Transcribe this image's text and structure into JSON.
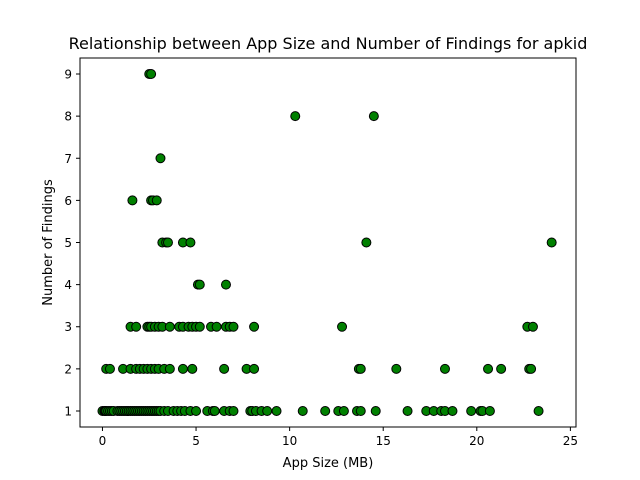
{
  "chart_data": {
    "type": "scatter",
    "title": "Relationship between App Size and Number of Findings for apkid",
    "xlabel": "App Size (MB)",
    "ylabel": "Number of Findings",
    "xlim": [
      -1.2,
      25.3
    ],
    "ylim": [
      0.62,
      9.38
    ],
    "xticks": [
      0,
      5,
      10,
      15,
      20,
      25
    ],
    "yticks": [
      1,
      2,
      3,
      4,
      5,
      6,
      7,
      8,
      9
    ],
    "grid": false,
    "marker_color": "#008000",
    "marker_edge_color": "#000000",
    "points": [
      {
        "x": 0.0,
        "y": 1
      },
      {
        "x": 0.1,
        "y": 1
      },
      {
        "x": 0.15,
        "y": 1
      },
      {
        "x": 0.2,
        "y": 1
      },
      {
        "x": 0.3,
        "y": 1
      },
      {
        "x": 0.4,
        "y": 1
      },
      {
        "x": 0.5,
        "y": 1
      },
      {
        "x": 0.6,
        "y": 1
      },
      {
        "x": 0.8,
        "y": 1
      },
      {
        "x": 0.9,
        "y": 1
      },
      {
        "x": 1.0,
        "y": 1
      },
      {
        "x": 1.1,
        "y": 1
      },
      {
        "x": 1.2,
        "y": 1
      },
      {
        "x": 1.3,
        "y": 1
      },
      {
        "x": 1.4,
        "y": 1
      },
      {
        "x": 1.5,
        "y": 1
      },
      {
        "x": 1.6,
        "y": 1
      },
      {
        "x": 1.7,
        "y": 1
      },
      {
        "x": 1.8,
        "y": 1
      },
      {
        "x": 1.9,
        "y": 1
      },
      {
        "x": 2.0,
        "y": 1
      },
      {
        "x": 2.1,
        "y": 1
      },
      {
        "x": 2.2,
        "y": 1
      },
      {
        "x": 2.3,
        "y": 1
      },
      {
        "x": 2.4,
        "y": 1
      },
      {
        "x": 2.5,
        "y": 1
      },
      {
        "x": 2.6,
        "y": 1
      },
      {
        "x": 2.7,
        "y": 1
      },
      {
        "x": 2.8,
        "y": 1
      },
      {
        "x": 2.9,
        "y": 1
      },
      {
        "x": 3.0,
        "y": 1
      },
      {
        "x": 3.1,
        "y": 1
      },
      {
        "x": 3.3,
        "y": 1
      },
      {
        "x": 3.5,
        "y": 1
      },
      {
        "x": 3.8,
        "y": 1
      },
      {
        "x": 4.0,
        "y": 1
      },
      {
        "x": 4.2,
        "y": 1
      },
      {
        "x": 4.4,
        "y": 1
      },
      {
        "x": 4.7,
        "y": 1
      },
      {
        "x": 5.0,
        "y": 1
      },
      {
        "x": 5.6,
        "y": 1
      },
      {
        "x": 5.9,
        "y": 1
      },
      {
        "x": 6.0,
        "y": 1
      },
      {
        "x": 6.5,
        "y": 1
      },
      {
        "x": 6.8,
        "y": 1
      },
      {
        "x": 7.0,
        "y": 1
      },
      {
        "x": 7.9,
        "y": 1
      },
      {
        "x": 8.0,
        "y": 1
      },
      {
        "x": 8.2,
        "y": 1
      },
      {
        "x": 8.5,
        "y": 1
      },
      {
        "x": 8.8,
        "y": 1
      },
      {
        "x": 9.3,
        "y": 1
      },
      {
        "x": 10.7,
        "y": 1
      },
      {
        "x": 11.9,
        "y": 1
      },
      {
        "x": 12.6,
        "y": 1
      },
      {
        "x": 12.9,
        "y": 1
      },
      {
        "x": 13.6,
        "y": 1
      },
      {
        "x": 13.8,
        "y": 1
      },
      {
        "x": 14.6,
        "y": 1
      },
      {
        "x": 16.3,
        "y": 1
      },
      {
        "x": 17.3,
        "y": 1
      },
      {
        "x": 17.7,
        "y": 1
      },
      {
        "x": 18.1,
        "y": 1
      },
      {
        "x": 18.3,
        "y": 1
      },
      {
        "x": 18.7,
        "y": 1
      },
      {
        "x": 19.7,
        "y": 1
      },
      {
        "x": 20.2,
        "y": 1
      },
      {
        "x": 20.3,
        "y": 1
      },
      {
        "x": 20.7,
        "y": 1
      },
      {
        "x": 23.3,
        "y": 1
      },
      {
        "x": 0.2,
        "y": 2
      },
      {
        "x": 0.4,
        "y": 2
      },
      {
        "x": 1.1,
        "y": 2
      },
      {
        "x": 1.5,
        "y": 2
      },
      {
        "x": 1.8,
        "y": 2
      },
      {
        "x": 2.0,
        "y": 2
      },
      {
        "x": 2.2,
        "y": 2
      },
      {
        "x": 2.4,
        "y": 2
      },
      {
        "x": 2.6,
        "y": 2
      },
      {
        "x": 2.8,
        "y": 2
      },
      {
        "x": 3.0,
        "y": 2
      },
      {
        "x": 3.3,
        "y": 2
      },
      {
        "x": 3.6,
        "y": 2
      },
      {
        "x": 4.3,
        "y": 2
      },
      {
        "x": 4.8,
        "y": 2
      },
      {
        "x": 6.5,
        "y": 2
      },
      {
        "x": 7.7,
        "y": 2
      },
      {
        "x": 8.1,
        "y": 2
      },
      {
        "x": 13.7,
        "y": 2
      },
      {
        "x": 13.8,
        "y": 2
      },
      {
        "x": 15.7,
        "y": 2
      },
      {
        "x": 18.3,
        "y": 2
      },
      {
        "x": 20.6,
        "y": 2
      },
      {
        "x": 21.3,
        "y": 2
      },
      {
        "x": 22.8,
        "y": 2
      },
      {
        "x": 22.9,
        "y": 2
      },
      {
        "x": 1.5,
        "y": 3
      },
      {
        "x": 1.8,
        "y": 3
      },
      {
        "x": 2.4,
        "y": 3
      },
      {
        "x": 2.5,
        "y": 3
      },
      {
        "x": 2.6,
        "y": 3
      },
      {
        "x": 2.8,
        "y": 3
      },
      {
        "x": 3.0,
        "y": 3
      },
      {
        "x": 3.2,
        "y": 3
      },
      {
        "x": 3.6,
        "y": 3
      },
      {
        "x": 4.1,
        "y": 3
      },
      {
        "x": 4.3,
        "y": 3
      },
      {
        "x": 4.6,
        "y": 3
      },
      {
        "x": 4.8,
        "y": 3
      },
      {
        "x": 5.0,
        "y": 3
      },
      {
        "x": 5.2,
        "y": 3
      },
      {
        "x": 5.8,
        "y": 3
      },
      {
        "x": 6.1,
        "y": 3
      },
      {
        "x": 6.6,
        "y": 3
      },
      {
        "x": 6.8,
        "y": 3
      },
      {
        "x": 7.0,
        "y": 3
      },
      {
        "x": 8.1,
        "y": 3
      },
      {
        "x": 12.8,
        "y": 3
      },
      {
        "x": 22.7,
        "y": 3
      },
      {
        "x": 23.0,
        "y": 3
      },
      {
        "x": 5.1,
        "y": 4
      },
      {
        "x": 5.2,
        "y": 4
      },
      {
        "x": 6.6,
        "y": 4
      },
      {
        "x": 3.2,
        "y": 5
      },
      {
        "x": 3.4,
        "y": 5
      },
      {
        "x": 3.5,
        "y": 5
      },
      {
        "x": 4.3,
        "y": 5
      },
      {
        "x": 4.7,
        "y": 5
      },
      {
        "x": 14.1,
        "y": 5
      },
      {
        "x": 24.0,
        "y": 5
      },
      {
        "x": 1.6,
        "y": 6
      },
      {
        "x": 2.6,
        "y": 6
      },
      {
        "x": 2.7,
        "y": 6
      },
      {
        "x": 2.9,
        "y": 6
      },
      {
        "x": 3.1,
        "y": 7
      },
      {
        "x": 10.3,
        "y": 8
      },
      {
        "x": 14.5,
        "y": 8
      },
      {
        "x": 2.5,
        "y": 9
      },
      {
        "x": 2.6,
        "y": 9
      }
    ]
  }
}
